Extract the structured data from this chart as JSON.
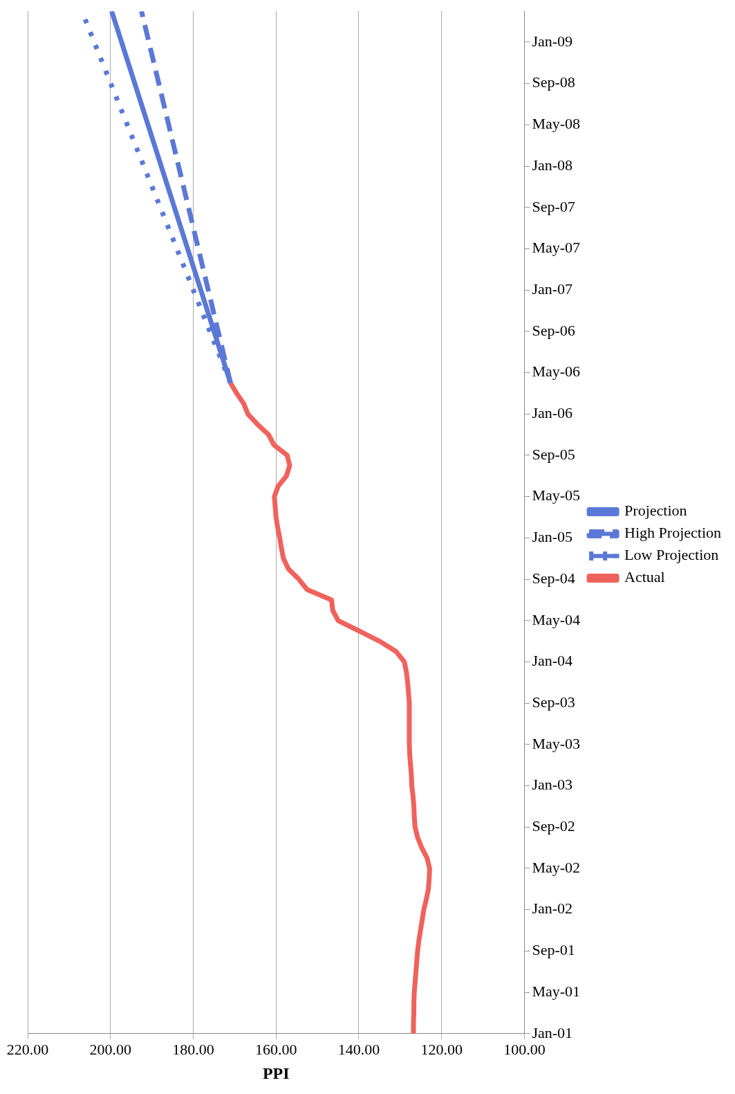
{
  "chart_data": {
    "type": "line",
    "orientation": "horizontal",
    "xlabel": "PPI",
    "ylim": [
      "2001-01",
      "2009-04"
    ],
    "yticks": [
      {
        "value": "2001-01",
        "label": "Jan-01"
      },
      {
        "value": "2001-05",
        "label": "May-01"
      },
      {
        "value": "2001-09",
        "label": "Sep-01"
      },
      {
        "value": "2002-01",
        "label": "Jan-02"
      },
      {
        "value": "2002-05",
        "label": "May-02"
      },
      {
        "value": "2002-09",
        "label": "Sep-02"
      },
      {
        "value": "2003-01",
        "label": "Jan-03"
      },
      {
        "value": "2003-05",
        "label": "May-03"
      },
      {
        "value": "2003-09",
        "label": "Sep-03"
      },
      {
        "value": "2004-01",
        "label": "Jan-04"
      },
      {
        "value": "2004-05",
        "label": "May-04"
      },
      {
        "value": "2004-09",
        "label": "Sep-04"
      },
      {
        "value": "2005-01",
        "label": "Jan-05"
      },
      {
        "value": "2005-05",
        "label": "May-05"
      },
      {
        "value": "2005-09",
        "label": "Sep-05"
      },
      {
        "value": "2006-01",
        "label": "Jan-06"
      },
      {
        "value": "2006-05",
        "label": "May-06"
      },
      {
        "value": "2006-09",
        "label": "Sep-06"
      },
      {
        "value": "2007-01",
        "label": "Jan-07"
      },
      {
        "value": "2007-05",
        "label": "May-07"
      },
      {
        "value": "2007-09",
        "label": "Sep-07"
      },
      {
        "value": "2008-01",
        "label": "Jan-08"
      },
      {
        "value": "2008-05",
        "label": "May-08"
      },
      {
        "value": "2008-09",
        "label": "Sep-08"
      },
      {
        "value": "2009-01",
        "label": "Jan-09"
      }
    ],
    "xlim": [
      220,
      100
    ],
    "xticks": [
      {
        "value": 220,
        "label": "220.00"
      },
      {
        "value": 200,
        "label": "200.00"
      },
      {
        "value": 180,
        "label": "180.00"
      },
      {
        "value": 160,
        "label": "160.00"
      },
      {
        "value": 140,
        "label": "140.00"
      },
      {
        "value": 120,
        "label": "120.00"
      },
      {
        "value": 100,
        "label": "100.00"
      }
    ],
    "grid": "x",
    "legend": "right",
    "marker": "none",
    "series": [
      {
        "name": "Projection",
        "color": "#5b78d6",
        "line_style": "solid",
        "x": [
          "2006-04",
          "2009-04"
        ],
        "values": [
          171.0,
          199.7
        ]
      },
      {
        "name": "High Projection",
        "color": "#5b78d6",
        "line_style": "dashed",
        "x": [
          "2006-04",
          "2009-04"
        ],
        "values": [
          171.0,
          192.5
        ]
      },
      {
        "name": "Low Projection",
        "color": "#5b78d6",
        "line_style": "dotted",
        "x": [
          "2006-04",
          "2009-04"
        ],
        "values": [
          171.0,
          206.9
        ]
      },
      {
        "name": "Actual",
        "color": "#f0625c",
        "line_style": "solid",
        "x": [
          "2001-01",
          "2001-02",
          "2001-03",
          "2001-04",
          "2001-05",
          "2001-06",
          "2001-07",
          "2001-08",
          "2001-09",
          "2001-10",
          "2001-11",
          "2001-12",
          "2002-01",
          "2002-02",
          "2002-03",
          "2002-04",
          "2002-05",
          "2002-06",
          "2002-07",
          "2002-08",
          "2002-09",
          "2002-10",
          "2002-11",
          "2002-12",
          "2003-01",
          "2003-02",
          "2003-03",
          "2003-04",
          "2003-05",
          "2003-06",
          "2003-07",
          "2003-08",
          "2003-09",
          "2003-10",
          "2003-11",
          "2003-12",
          "2004-01",
          "2004-02",
          "2004-03",
          "2004-04",
          "2004-05",
          "2004-06",
          "2004-07",
          "2004-08",
          "2004-09",
          "2004-10",
          "2004-11",
          "2004-12",
          "2005-01",
          "2005-02",
          "2005-03",
          "2005-04",
          "2005-05",
          "2005-06",
          "2005-07",
          "2005-08",
          "2005-09",
          "2005-10",
          "2005-11",
          "2005-12",
          "2006-01",
          "2006-02",
          "2006-03",
          "2006-04"
        ],
        "values": [
          126.8,
          126.8,
          126.7,
          126.7,
          126.6,
          126.4,
          126.2,
          126.0,
          125.8,
          125.5,
          125.1,
          124.7,
          124.3,
          123.7,
          123.2,
          123.0,
          122.9,
          123.5,
          124.8,
          125.8,
          126.4,
          126.6,
          126.7,
          126.9,
          127.2,
          127.3,
          127.5,
          127.7,
          127.8,
          127.8,
          127.8,
          127.8,
          127.8,
          128.0,
          128.2,
          128.5,
          129.0,
          131.0,
          135.0,
          140.0,
          145.0,
          146.3,
          146.6,
          152.5,
          154.5,
          157.0,
          158.2,
          158.7,
          159.1,
          159.6,
          160.0,
          160.2,
          160.4,
          159.5,
          157.5,
          156.7,
          157.3,
          160.5,
          161.8,
          164.5,
          166.8,
          167.8,
          169.5,
          171.0
        ]
      }
    ]
  }
}
